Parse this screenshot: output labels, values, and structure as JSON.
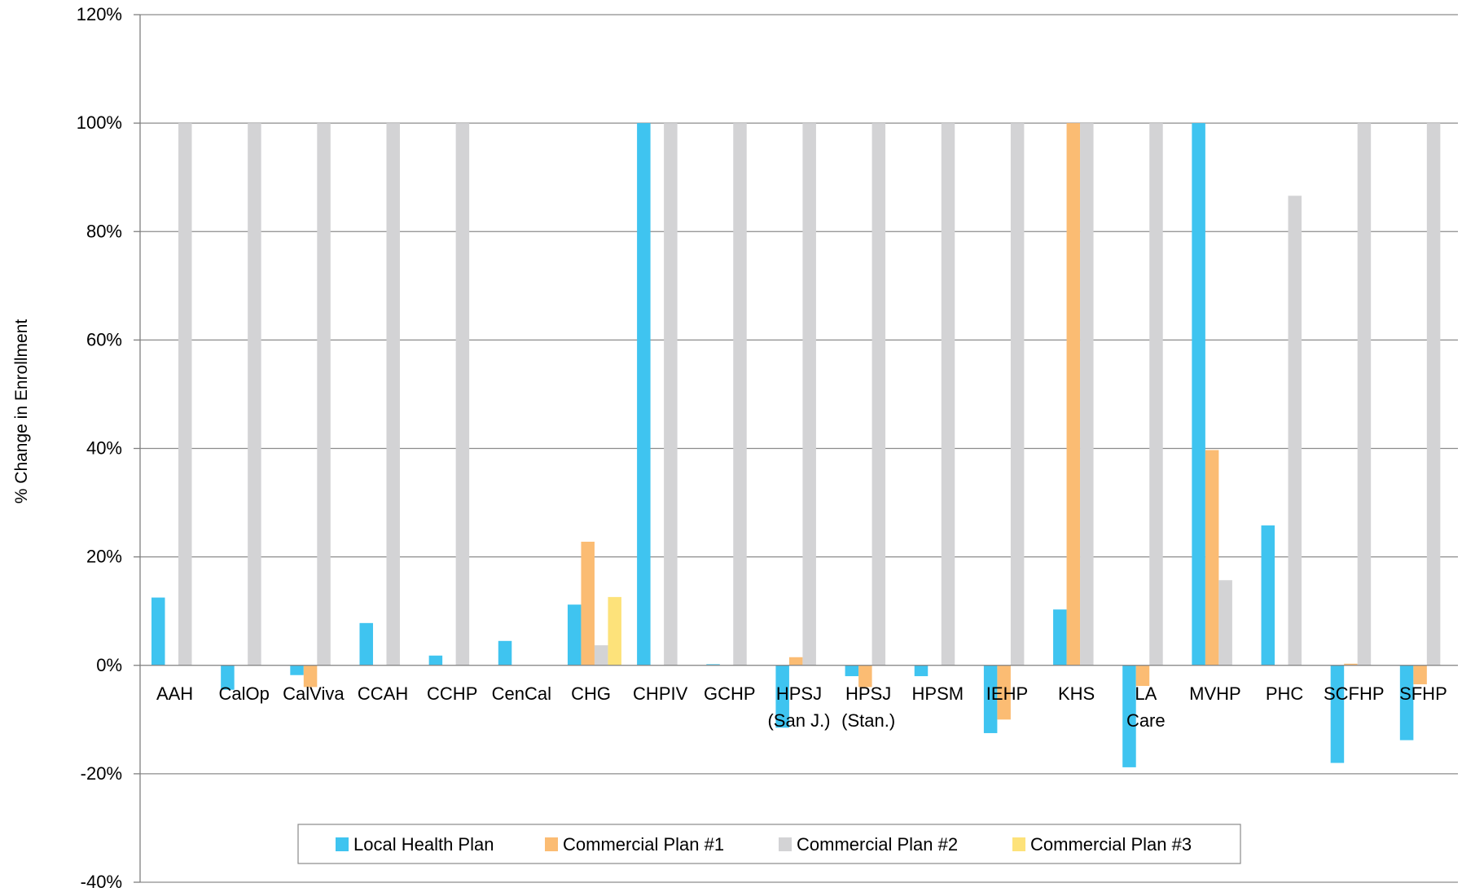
{
  "chart_data": {
    "type": "bar",
    "title": "",
    "xlabel": "",
    "ylabel": "% Change in Enrollment",
    "ylim": [
      -40,
      120
    ],
    "yticks": [
      -40,
      -20,
      0,
      20,
      40,
      60,
      80,
      100,
      120
    ],
    "ytick_labels": [
      "-40%",
      "-20%",
      "0%",
      "20%",
      "40%",
      "60%",
      "80%",
      "100%",
      "120%"
    ],
    "grid": true,
    "legend_position": "bottom",
    "categories": [
      [
        "AAH"
      ],
      [
        "CalOp"
      ],
      [
        "CalViva"
      ],
      [
        "CCAH"
      ],
      [
        "CCHP"
      ],
      [
        "CenCal"
      ],
      [
        "CHG"
      ],
      [
        "CHPIV"
      ],
      [
        "GCHP"
      ],
      [
        "HPSJ",
        "(San J.)"
      ],
      [
        "HPSJ",
        "(Stan.)"
      ],
      [
        "HPSM"
      ],
      [
        "IEHP"
      ],
      [
        "KHS"
      ],
      [
        "LA",
        "Care"
      ],
      [
        "MVHP"
      ],
      [
        "PHC"
      ],
      [
        "SCFHP"
      ],
      [
        "SFHP"
      ]
    ],
    "series": [
      {
        "name": "Local Health Plan",
        "color": "#3fc4f0",
        "values": [
          12.5,
          -4.5,
          -1.8,
          7.8,
          1.8,
          4.5,
          11.2,
          100,
          0.2,
          -11.5,
          -2.0,
          -2.0,
          -12.5,
          10.3,
          -18.8,
          100,
          25.8,
          -18.0,
          -13.8
        ]
      },
      {
        "name": "Commercial Plan #1",
        "color": "#fbbc73",
        "values": [
          null,
          null,
          -4.0,
          null,
          null,
          null,
          22.8,
          null,
          null,
          1.5,
          -4.0,
          null,
          -10.0,
          100,
          -3.8,
          39.7,
          null,
          0.3,
          -3.5
        ]
      },
      {
        "name": "Commercial Plan #2",
        "color": "#d3d3d5",
        "values": [
          100,
          100,
          100,
          100,
          100,
          null,
          3.7,
          100,
          100,
          100,
          100,
          100,
          100,
          100,
          100,
          15.7,
          86.6,
          100,
          100
        ]
      },
      {
        "name": "Commercial Plan #3",
        "color": "#fde27a",
        "values": [
          null,
          null,
          null,
          null,
          null,
          null,
          12.6,
          null,
          null,
          null,
          null,
          null,
          null,
          null,
          null,
          null,
          null,
          null,
          null
        ]
      }
    ]
  }
}
